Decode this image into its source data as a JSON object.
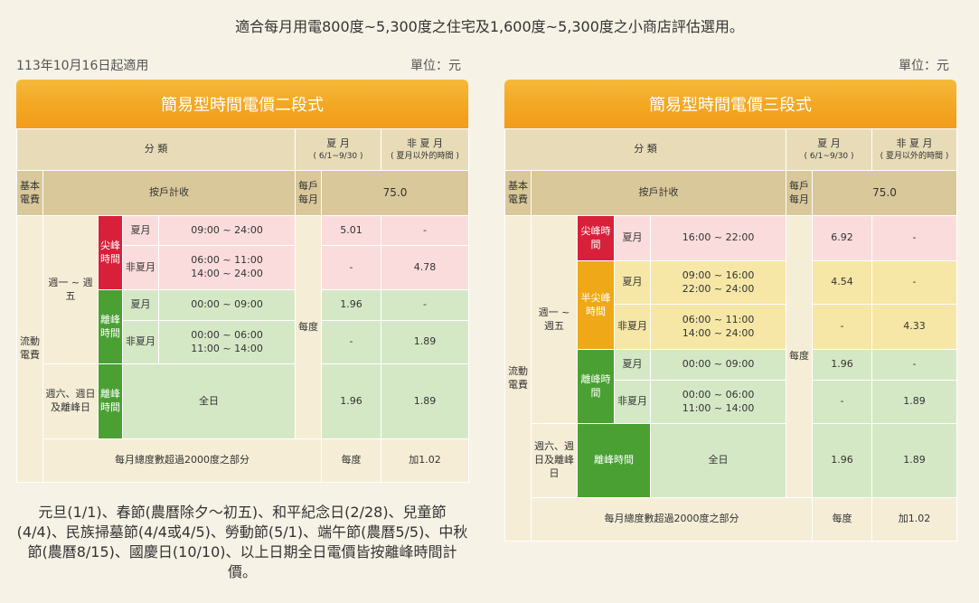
{
  "intro": "適合每月用電800度~5,300度之住宅及1,600度~5,300度之小商店評估選用。",
  "effective_date": "113年10月16日起適用",
  "unit_label": "單位：元",
  "two_tier": {
    "title": "簡易型時間電價二段式",
    "header": {
      "category": "分 類",
      "summer": "夏 月",
      "summer_range": "( 6/1~9/30 )",
      "nonsummer": "非 夏 月",
      "nonsummer_range": "( 夏月以外的時間 )"
    },
    "basic": {
      "label": "基本電費",
      "desc": "按戶計收",
      "unit": "每戶每月",
      "value": "75.0"
    },
    "flow_label": "流動電費",
    "weekday_label": "週一 ~ 週五",
    "weekend_label": "週六、週日及離峰日",
    "per_kwh": "每度",
    "peak": {
      "label": "尖峰時間",
      "summer_label": "夏月",
      "summer_time": "09:00 ~ 24:00",
      "summer_price": "5.01",
      "summer_other": "-",
      "nonsummer_label": "非夏月",
      "nonsummer_time_1": "06:00 ~ 11:00",
      "nonsummer_time_2": "14:00 ~ 24:00",
      "nonsummer_summer": "-",
      "nonsummer_price": "4.78"
    },
    "offpeak": {
      "label": "離峰時間",
      "summer_label": "夏月",
      "summer_time": "00:00 ~ 09:00",
      "summer_price": "1.96",
      "summer_other": "-",
      "nonsummer_label": "非夏月",
      "nonsummer_time_1": "00:00 ~ 06:00",
      "nonsummer_time_2": "11:00 ~ 14:00",
      "nonsummer_summer": "-",
      "nonsummer_price": "1.89"
    },
    "weekend": {
      "label": "離峰時間",
      "time": "全日",
      "summer_price": "1.96",
      "nonsummer_price": "1.89"
    },
    "excess": {
      "desc": "每月總度數超過2000度之部分",
      "unit": "每度",
      "value": "加1.02"
    }
  },
  "three_tier": {
    "title": "簡易型時間電價三段式",
    "header": {
      "category": "分 類",
      "summer": "夏 月",
      "summer_range": "( 6/1~9/30 )",
      "nonsummer": "非 夏 月",
      "nonsummer_range": "( 夏月以外的時間 )"
    },
    "basic": {
      "label": "基本電費",
      "desc": "按戶計收",
      "unit": "每戶每月",
      "value": "75.0"
    },
    "flow_label": "流動電費",
    "weekday_label": "週一 ~ 週五",
    "weekend_label": "週六、週日及離峰日",
    "per_kwh": "每度",
    "peak": {
      "label": "尖峰時間",
      "summer_label": "夏月",
      "summer_time": "16:00 ~ 22:00",
      "summer_price": "6.92",
      "summer_other": "-"
    },
    "semipeak": {
      "label": "半尖峰時間",
      "summer_label": "夏月",
      "summer_time_1": "09:00 ~ 16:00",
      "summer_time_2": "22:00 ~ 24:00",
      "summer_price": "4.54",
      "summer_other": "-",
      "nonsummer_label": "非夏月",
      "nonsummer_time_1": "06:00 ~ 11:00",
      "nonsummer_time_2": "14:00 ~ 24:00",
      "nonsummer_summer": "-",
      "nonsummer_price": "4.33"
    },
    "offpeak": {
      "label": "離峰時間",
      "summer_label": "夏月",
      "summer_time": "00:00 ~ 09:00",
      "summer_price": "1.96",
      "summer_other": "-",
      "nonsummer_label": "非夏月",
      "nonsummer_time_1": "00:00 ~ 06:00",
      "nonsummer_time_2": "11:00 ~ 14:00",
      "nonsummer_summer": "-",
      "nonsummer_price": "1.89"
    },
    "weekend": {
      "label": "離峰時間",
      "time": "全日",
      "summer_price": "1.96",
      "nonsummer_price": "1.89"
    },
    "excess": {
      "desc": "每月總度數超過2000度之部分",
      "unit": "每度",
      "value": "加1.02"
    }
  },
  "holiday_note": "元旦(1/1)、春節(農曆除夕～初五)、和平紀念日(2/28)、兒童節(4/4)、民族掃墓節(4/4或4/5)、勞動節(5/1)、端午節(農曆5/5)、中秋節(農曆8/15)、國慶日(10/10)、以上日期全日電價皆按離峰時間計價。"
}
